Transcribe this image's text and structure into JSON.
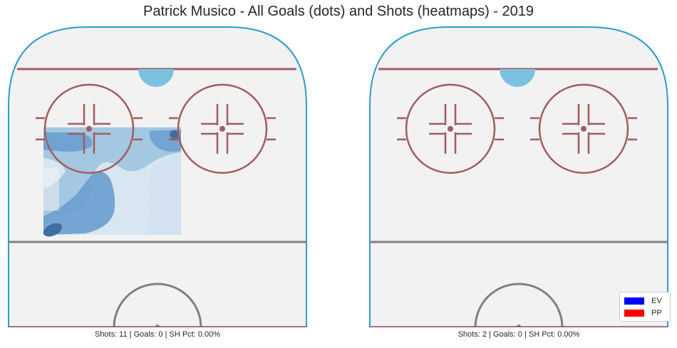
{
  "title": "Patrick Musico - All Goals (dots) and Shots (heatmaps) - 2019",
  "colors": {
    "ice": "#f2f2f2",
    "boards": "#2a9fd0",
    "red_lines": "#a35c5f",
    "crease": "#7bc2e0",
    "blue_line": "#808080",
    "heat": [
      "#cfe0ef",
      "#9ec3e0",
      "#6a9fcf",
      "#3f6f9f"
    ]
  },
  "panels": [
    {
      "caption": "Shots: 11 | Goals: 0 | SH Pct: 0.00%"
    },
    {
      "caption": "Shots: 2 | Goals: 0 | SH Pct: 0.00%"
    }
  ],
  "legend": {
    "placement": "lower-right",
    "items": [
      {
        "label": "EV",
        "color": "#0000ff"
      },
      {
        "label": "PP",
        "color": "#ff0000"
      }
    ]
  },
  "chart_data": {
    "type": "heatmap",
    "title": "Patrick Musico - All Goals (dots) and Shots (heatmaps) - 2019",
    "series": [
      {
        "name": "EV",
        "color": "#0000ff",
        "goals": []
      },
      {
        "name": "PP",
        "color": "#ff0000",
        "goals": []
      }
    ],
    "panels": [
      {
        "shots": 11,
        "goals": 0,
        "sh_pct": "0.00%",
        "heatmap": "present"
      },
      {
        "shots": 2,
        "goals": 0,
        "sh_pct": "0.00%",
        "heatmap": "none"
      }
    ],
    "grid": false
  }
}
